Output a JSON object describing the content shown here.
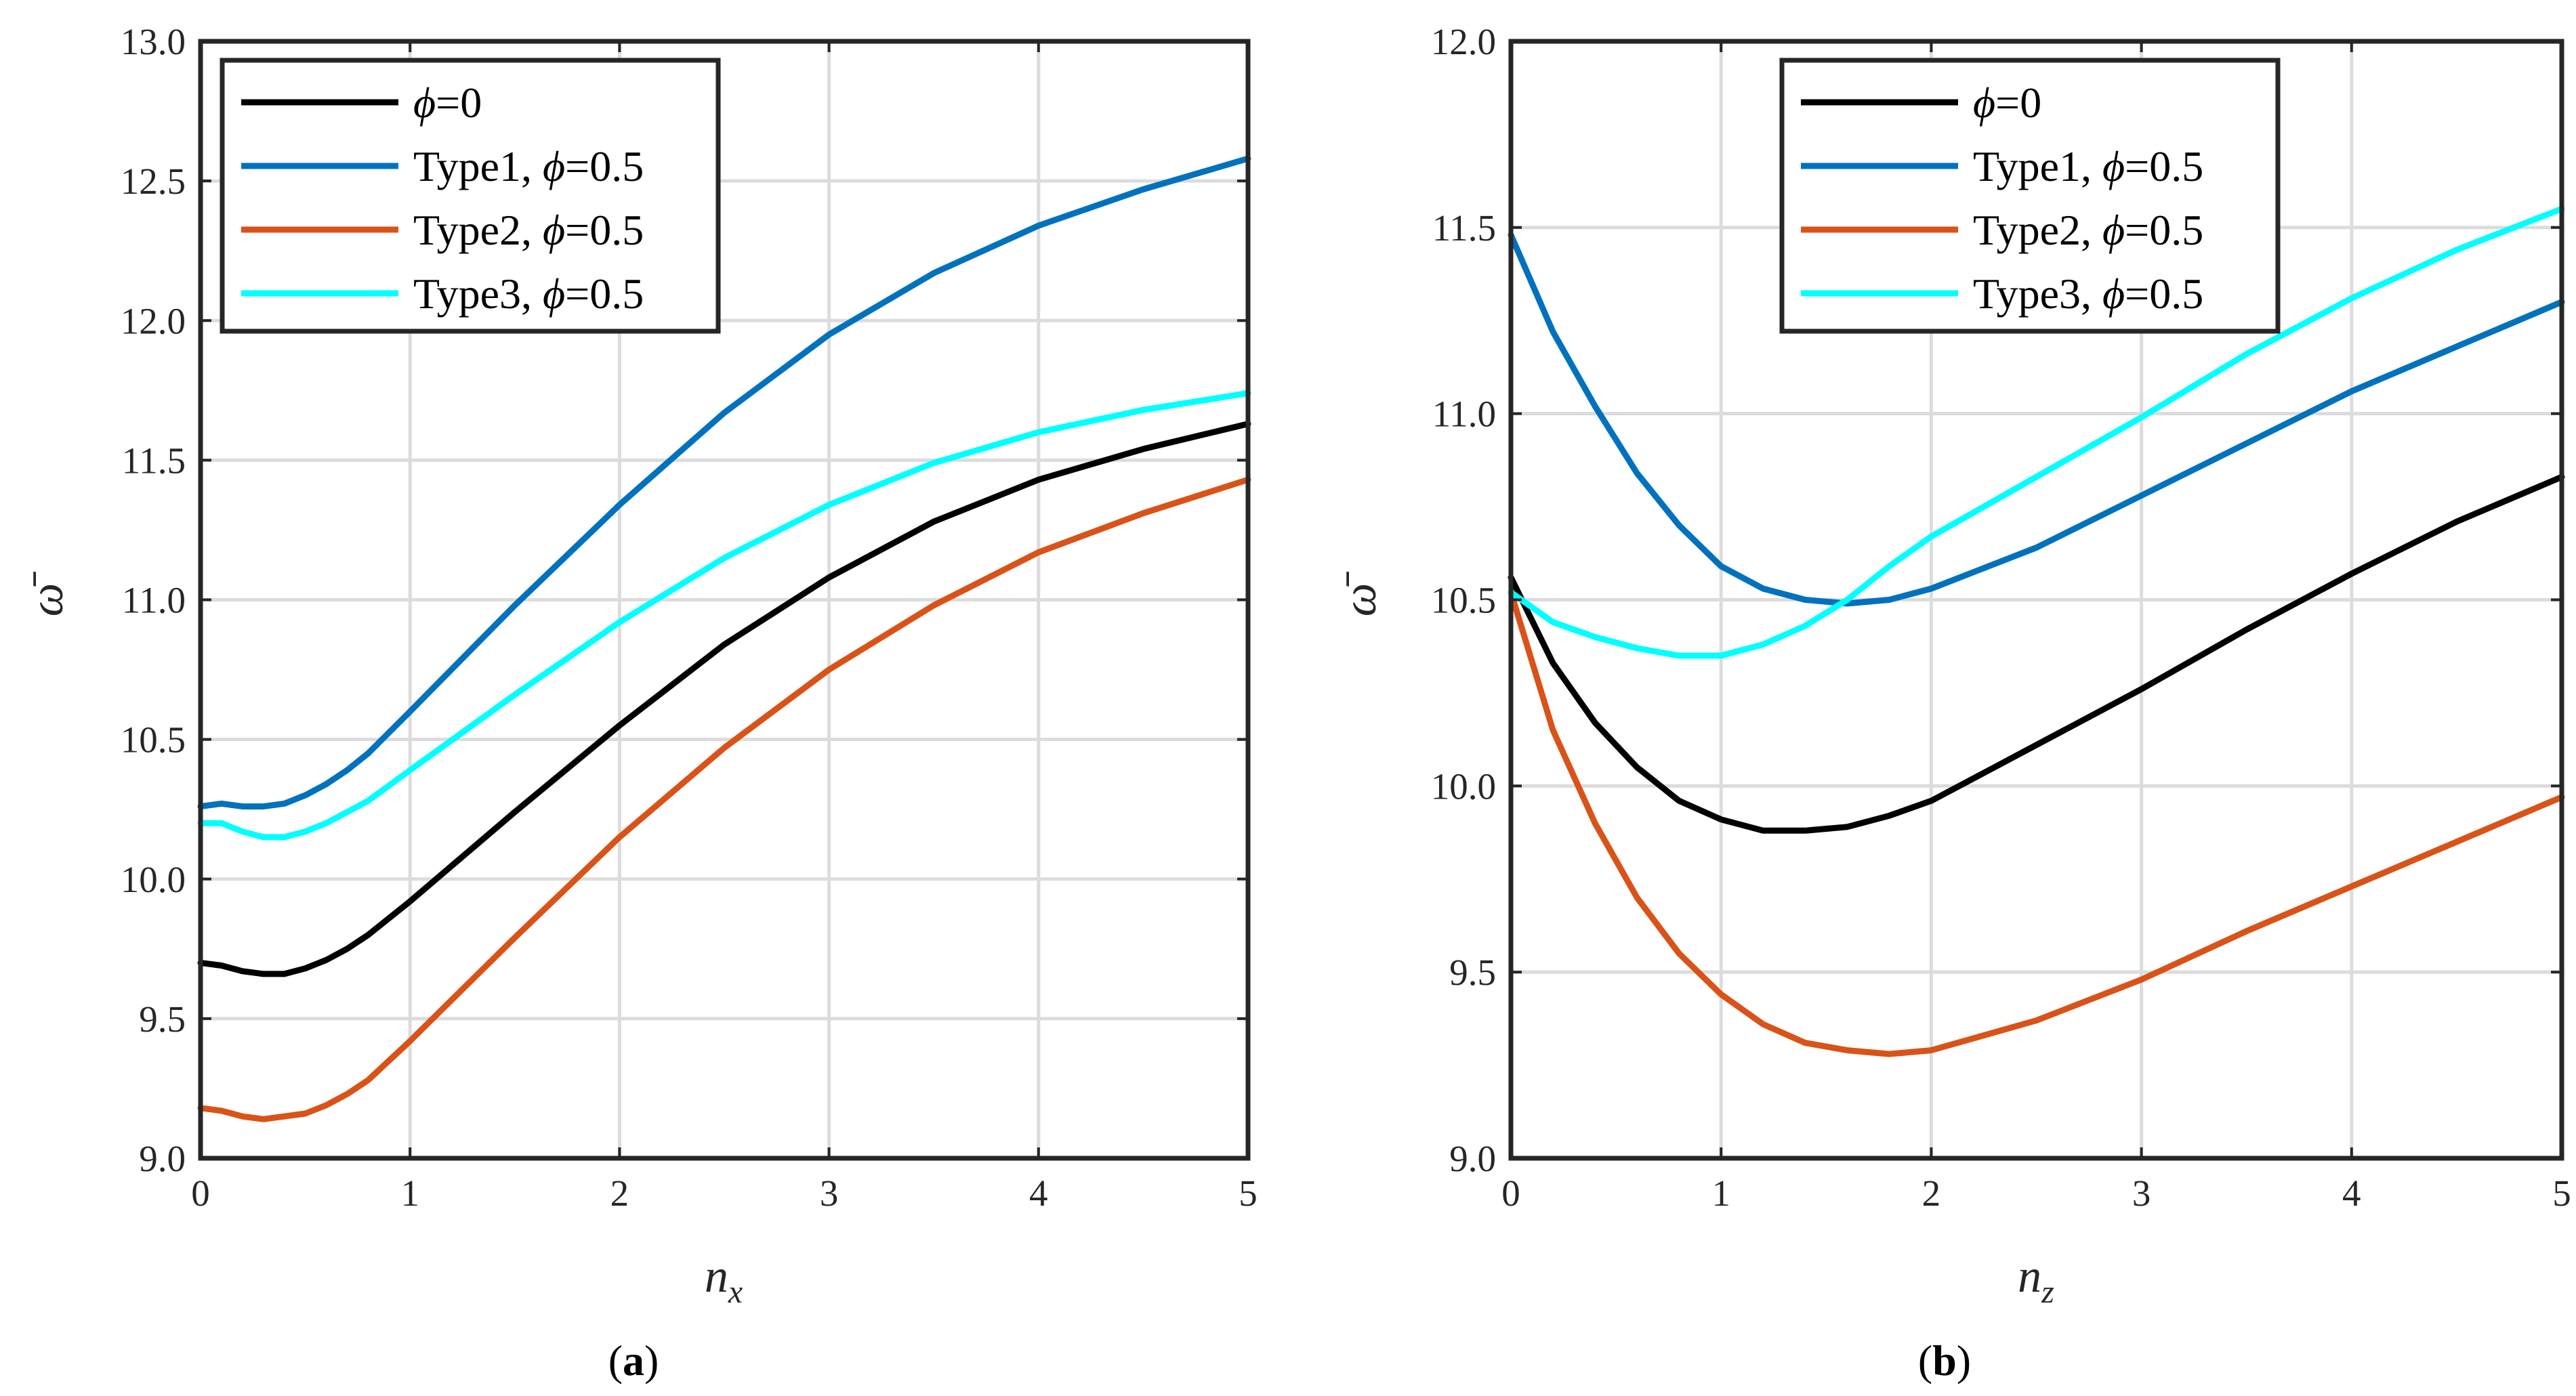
{
  "chart_data": [
    {
      "type": "line",
      "panel_label": "a",
      "title": "",
      "xlabel": "n",
      "xlabel_sub": "x",
      "ylabel": "ω̄",
      "xlim": [
        0,
        5
      ],
      "ylim": [
        9.0,
        13.0
      ],
      "xticks": [
        "0",
        "1",
        "2",
        "3",
        "4",
        "5"
      ],
      "yticks": [
        "9.0",
        "9.5",
        "10.0",
        "10.5",
        "11.0",
        "11.5",
        "12.0",
        "12.5",
        "13.0"
      ],
      "grid": true,
      "legend_position": "top-left",
      "x": [
        0,
        0.1,
        0.2,
        0.3,
        0.4,
        0.5,
        0.6,
        0.7,
        0.8,
        1.0,
        1.5,
        2.0,
        2.5,
        3.0,
        3.5,
        4.0,
        4.5,
        5.0
      ],
      "series": [
        {
          "name": "ϕ=0",
          "type_label": "",
          "phi_value": "=0",
          "color": "#000000",
          "values": [
            9.7,
            9.69,
            9.67,
            9.66,
            9.66,
            9.68,
            9.71,
            9.75,
            9.8,
            9.92,
            10.24,
            10.55,
            10.84,
            11.08,
            11.28,
            11.43,
            11.54,
            11.63
          ]
        },
        {
          "name": "Type1, ϕ=0.5",
          "type_label": "Type1, ",
          "phi_value": "=0.5",
          "color": "#0072BD",
          "values": [
            10.26,
            10.27,
            10.26,
            10.26,
            10.27,
            10.3,
            10.34,
            10.39,
            10.45,
            10.6,
            10.98,
            11.34,
            11.67,
            11.95,
            12.17,
            12.34,
            12.47,
            12.58
          ]
        },
        {
          "name": "Type2, ϕ=0.5",
          "type_label": "Type2, ",
          "phi_value": "=0.5",
          "color": "#D95319",
          "values": [
            9.18,
            9.17,
            9.15,
            9.14,
            9.15,
            9.16,
            9.19,
            9.23,
            9.28,
            9.42,
            9.79,
            10.15,
            10.47,
            10.75,
            10.98,
            11.17,
            11.31,
            11.43
          ]
        },
        {
          "name": "Type3, ϕ=0.5",
          "type_label": "Type3, ",
          "phi_value": "=0.5",
          "color": "#00FFFF",
          "values": [
            10.2,
            10.2,
            10.17,
            10.15,
            10.15,
            10.17,
            10.2,
            10.24,
            10.28,
            10.39,
            10.66,
            10.92,
            11.15,
            11.34,
            11.49,
            11.6,
            11.68,
            11.74
          ]
        }
      ]
    },
    {
      "type": "line",
      "panel_label": "b",
      "title": "",
      "xlabel": "n",
      "xlabel_sub": "z",
      "ylabel": "ω̄",
      "xlim": [
        0,
        5
      ],
      "ylim": [
        9.0,
        12.0
      ],
      "xticks": [
        "0",
        "1",
        "2",
        "3",
        "4",
        "5"
      ],
      "yticks": [
        "9.0",
        "9.5",
        "10.0",
        "10.5",
        "11.0",
        "11.5",
        "12.0"
      ],
      "grid": true,
      "legend_position": "top-center",
      "x": [
        0,
        0.2,
        0.4,
        0.6,
        0.8,
        1.0,
        1.2,
        1.4,
        1.6,
        1.8,
        2.0,
        2.5,
        3.0,
        3.5,
        4.0,
        4.5,
        5.0
      ],
      "series": [
        {
          "name": "ϕ=0",
          "type_label": "",
          "phi_value": "=0",
          "color": "#000000",
          "values": [
            10.56,
            10.33,
            10.17,
            10.05,
            9.96,
            9.91,
            9.88,
            9.88,
            9.89,
            9.92,
            9.96,
            10.11,
            10.26,
            10.42,
            10.57,
            10.71,
            10.83
          ]
        },
        {
          "name": "Type1, ϕ=0.5",
          "type_label": "Type1, ",
          "phi_value": "=0.5",
          "color": "#0072BD",
          "values": [
            11.48,
            11.22,
            11.02,
            10.84,
            10.7,
            10.59,
            10.53,
            10.5,
            10.49,
            10.5,
            10.53,
            10.64,
            10.78,
            10.92,
            11.06,
            11.18,
            11.3
          ]
        },
        {
          "name": "Type2, ϕ=0.5",
          "type_label": "Type2, ",
          "phi_value": "=0.5",
          "color": "#D95319",
          "values": [
            10.52,
            10.15,
            9.9,
            9.7,
            9.55,
            9.44,
            9.36,
            9.31,
            9.29,
            9.28,
            9.29,
            9.37,
            9.48,
            9.61,
            9.73,
            9.85,
            9.97
          ]
        },
        {
          "name": "Type3, ϕ=0.5",
          "type_label": "Type3, ",
          "phi_value": "=0.5",
          "color": "#00FFFF",
          "values": [
            10.52,
            10.44,
            10.4,
            10.37,
            10.35,
            10.35,
            10.38,
            10.43,
            10.5,
            10.59,
            10.67,
            10.83,
            10.99,
            11.16,
            11.31,
            11.44,
            11.55
          ]
        }
      ]
    }
  ]
}
